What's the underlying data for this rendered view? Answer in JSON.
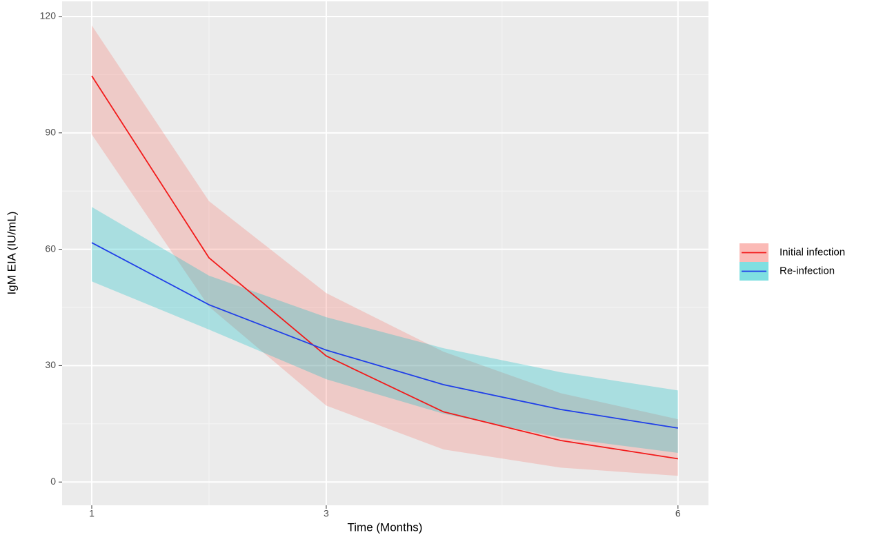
{
  "chart_data": {
    "type": "line",
    "x_label": "Time (Months)",
    "y_label": "IgM EIA (IU/mL)",
    "x": [
      1,
      2,
      3,
      4,
      5,
      6
    ],
    "series": [
      {
        "name": "Initial infection",
        "color": "#f21a1a",
        "fill": "#f8766d",
        "values": [
          104.7,
          57.8,
          32.5,
          18.1,
          10.7,
          6.0
        ],
        "upper": [
          117.7,
          72.4,
          48.7,
          33.6,
          22.9,
          16.2
        ],
        "lower": [
          89.6,
          45.2,
          19.7,
          8.4,
          3.7,
          1.6
        ]
      },
      {
        "name": "Re-infection",
        "color": "#1f3ee8",
        "fill": "#00bfc4",
        "values": [
          61.7,
          45.7,
          34.0,
          25.1,
          18.7,
          13.9
        ],
        "upper": [
          70.9,
          53.2,
          42.5,
          34.5,
          28.3,
          23.6
        ],
        "lower": [
          51.7,
          39.3,
          26.5,
          17.6,
          11.4,
          7.5
        ]
      }
    ],
    "xlim": [
      0.747,
      6.26
    ],
    "ylim": [
      -6.0,
      123.9
    ],
    "xticks": [
      1,
      3,
      6
    ],
    "yticks": [
      0,
      30,
      60,
      90,
      120
    ],
    "grid": true,
    "legend": "right"
  }
}
